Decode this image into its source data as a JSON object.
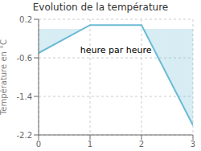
{
  "chart_data": {
    "type": "line",
    "title": "Evolution de la température",
    "ylabel": "Température en °C",
    "annotation": "heure par heure",
    "x": [
      0,
      1,
      2,
      3
    ],
    "values": [
      -0.5,
      0.08,
      0.08,
      -2.0
    ],
    "color": "#6bbbd4",
    "xlim": [
      0,
      3
    ],
    "ylim": [
      -2.2,
      0.2
    ],
    "xticks": [
      0,
      1,
      2,
      3
    ],
    "yticks": [
      0.2,
      -0.6,
      -1.4,
      -2.2
    ],
    "grid": true
  }
}
